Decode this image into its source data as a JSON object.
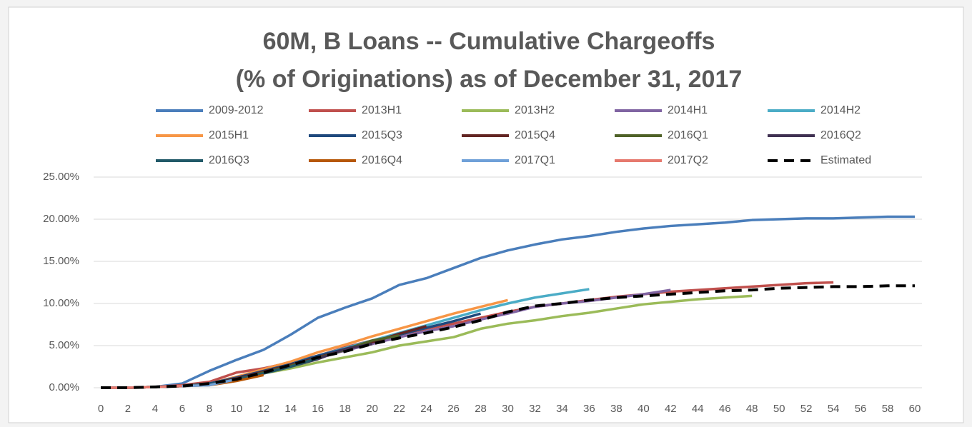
{
  "chart_data": {
    "type": "line",
    "title": [
      "60M, B Loans -- Cumulative Chargeoffs",
      "(% of Originations) as of December 31, 2017"
    ],
    "x": [
      0,
      2,
      4,
      6,
      8,
      10,
      12,
      14,
      16,
      18,
      20,
      22,
      24,
      26,
      28,
      30,
      32,
      34,
      36,
      38,
      40,
      42,
      44,
      46,
      48,
      50,
      52,
      54,
      56,
      58,
      60
    ],
    "xlim": [
      0,
      60
    ],
    "xticks": [
      0,
      2,
      4,
      6,
      8,
      10,
      12,
      14,
      16,
      18,
      20,
      22,
      24,
      26,
      28,
      30,
      32,
      34,
      36,
      38,
      40,
      42,
      44,
      46,
      48,
      50,
      52,
      54,
      56,
      58,
      60
    ],
    "ylim": [
      0,
      25
    ],
    "yticks": [
      {
        "value": 0,
        "label": "0.00%"
      },
      {
        "value": 5,
        "label": "5.00%"
      },
      {
        "value": 10,
        "label": "10.00%"
      },
      {
        "value": 15,
        "label": "15.00%"
      },
      {
        "value": 20,
        "label": "20.00%"
      },
      {
        "value": 25,
        "label": "25.00%"
      }
    ],
    "grid": true,
    "legend": "top",
    "series": [
      {
        "name": "2009-2012",
        "color": "#4a7ebb",
        "values": [
          0,
          0,
          0.1,
          0.5,
          2.0,
          3.3,
          4.5,
          6.3,
          8.3,
          9.5,
          10.6,
          12.2,
          13.0,
          14.2,
          15.4,
          16.3,
          17.0,
          17.6,
          18.0,
          18.5,
          18.9,
          19.2,
          19.4,
          19.6,
          19.9,
          20.0,
          20.1,
          20.1,
          20.2,
          20.3,
          20.3
        ]
      },
      {
        "name": "2013H1",
        "color": "#c0504d",
        "values": [
          0,
          0,
          0.1,
          0.3,
          0.7,
          1.8,
          2.3,
          3.0,
          3.8,
          4.8,
          5.6,
          6.3,
          7.0,
          7.6,
          8.3,
          9.0,
          9.6,
          10.0,
          10.4,
          10.8,
          11.1,
          11.4,
          11.6,
          11.8,
          12.0,
          12.2,
          12.4,
          12.5,
          null,
          null,
          null
        ]
      },
      {
        "name": "2013H2",
        "color": "#9bbb59",
        "values": [
          0,
          0,
          0.1,
          0.2,
          0.5,
          1.0,
          1.7,
          2.3,
          3.0,
          3.6,
          4.2,
          5.0,
          5.5,
          6.0,
          7.0,
          7.6,
          8.0,
          8.5,
          8.9,
          9.4,
          9.9,
          10.2,
          10.5,
          10.7,
          10.9,
          null,
          null,
          null,
          null,
          null,
          null
        ]
      },
      {
        "name": "2014H1",
        "color": "#8064a2",
        "values": [
          0,
          0,
          0.1,
          0.2,
          0.5,
          1.3,
          2.0,
          2.8,
          3.6,
          4.4,
          5.2,
          6.0,
          6.7,
          7.3,
          8.1,
          8.8,
          9.6,
          10.0,
          10.3,
          10.7,
          11.1,
          11.6,
          null,
          null,
          null,
          null,
          null,
          null,
          null,
          null,
          null
        ]
      },
      {
        "name": "2014H2",
        "color": "#4bacc6",
        "values": [
          0,
          0,
          0.1,
          0.2,
          0.5,
          1.2,
          2.0,
          2.9,
          3.8,
          4.7,
          5.6,
          6.5,
          7.4,
          8.3,
          9.2,
          10.0,
          10.7,
          11.2,
          11.7,
          null,
          null,
          null,
          null,
          null,
          null,
          null,
          null,
          null,
          null,
          null,
          null
        ]
      },
      {
        "name": "2015H1",
        "color": "#f79646",
        "values": [
          0,
          0,
          0.1,
          0.2,
          0.5,
          1.3,
          2.2,
          3.1,
          4.2,
          5.1,
          6.1,
          7.0,
          7.9,
          8.8,
          9.6,
          10.4,
          null,
          null,
          null,
          null,
          null,
          null,
          null,
          null,
          null,
          null,
          null,
          null,
          null,
          null,
          null
        ]
      },
      {
        "name": "2015Q3",
        "color": "#1f497d",
        "values": [
          0,
          0,
          0.1,
          0.2,
          0.5,
          1.2,
          2.0,
          2.8,
          3.8,
          4.6,
          5.5,
          6.3,
          7.1,
          7.9,
          8.8,
          null,
          null,
          null,
          null,
          null,
          null,
          null,
          null,
          null,
          null,
          null,
          null,
          null,
          null,
          null,
          null
        ]
      },
      {
        "name": "2015Q4",
        "color": "#632523",
        "values": [
          0,
          0,
          0.1,
          0.2,
          0.4,
          1.1,
          1.9,
          2.7,
          3.6,
          4.5,
          5.4,
          6.4,
          7.3,
          null,
          null,
          null,
          null,
          null,
          null,
          null,
          null,
          null,
          null,
          null,
          null,
          null,
          null,
          null,
          null,
          null,
          null
        ]
      },
      {
        "name": "2016Q1",
        "color": "#4f6228",
        "values": [
          0,
          0,
          0.1,
          0.2,
          0.4,
          1.0,
          1.8,
          2.6,
          3.5,
          4.5,
          5.6,
          6.2,
          null,
          null,
          null,
          null,
          null,
          null,
          null,
          null,
          null,
          null,
          null,
          null,
          null,
          null,
          null,
          null,
          null,
          null,
          null
        ]
      },
      {
        "name": "2016Q2",
        "color": "#403152",
        "values": [
          0,
          0,
          0.1,
          0.2,
          0.4,
          1.0,
          1.7,
          2.5,
          3.4,
          4.6,
          5.2,
          null,
          null,
          null,
          null,
          null,
          null,
          null,
          null,
          null,
          null,
          null,
          null,
          null,
          null,
          null,
          null,
          null,
          null,
          null,
          null
        ]
      },
      {
        "name": "2016Q3",
        "color": "#215968",
        "values": [
          0,
          0,
          0.1,
          0.2,
          0.4,
          1.0,
          1.7,
          2.5,
          3.5,
          null,
          null,
          null,
          null,
          null,
          null,
          null,
          null,
          null,
          null,
          null,
          null,
          null,
          null,
          null,
          null,
          null,
          null,
          null,
          null,
          null,
          null
        ]
      },
      {
        "name": "2016Q4",
        "color": "#b65708",
        "values": [
          0,
          0,
          0.1,
          0.2,
          0.3,
          0.8,
          1.5,
          null,
          null,
          null,
          null,
          null,
          null,
          null,
          null,
          null,
          null,
          null,
          null,
          null,
          null,
          null,
          null,
          null,
          null,
          null,
          null,
          null,
          null,
          null,
          null
        ]
      },
      {
        "name": "2017Q1",
        "color": "#6fa0d8",
        "values": [
          0,
          0,
          0.1,
          0.2,
          0.3,
          1.0,
          null,
          null,
          null,
          null,
          null,
          null,
          null,
          null,
          null,
          null,
          null,
          null,
          null,
          null,
          null,
          null,
          null,
          null,
          null,
          null,
          null,
          null,
          null,
          null,
          null
        ]
      },
      {
        "name": "2017Q2",
        "color": "#e6796e",
        "values": [
          0,
          0,
          0.1,
          0.2,
          null,
          null,
          null,
          null,
          null,
          null,
          null,
          null,
          null,
          null,
          null,
          null,
          null,
          null,
          null,
          null,
          null,
          null,
          null,
          null,
          null,
          null,
          null,
          null,
          null,
          null,
          null
        ]
      },
      {
        "name": "Estimated",
        "color": "#000000",
        "style": "dashed",
        "values": [
          0,
          0,
          0.1,
          0.2,
          0.5,
          1.0,
          1.8,
          2.7,
          3.6,
          4.3,
          5.2,
          5.9,
          6.5,
          7.2,
          8.0,
          9.0,
          9.7,
          10.0,
          10.4,
          10.7,
          10.9,
          11.1,
          11.3,
          11.5,
          11.6,
          11.8,
          11.9,
          12.0,
          12.0,
          12.1,
          12.1
        ]
      }
    ]
  }
}
